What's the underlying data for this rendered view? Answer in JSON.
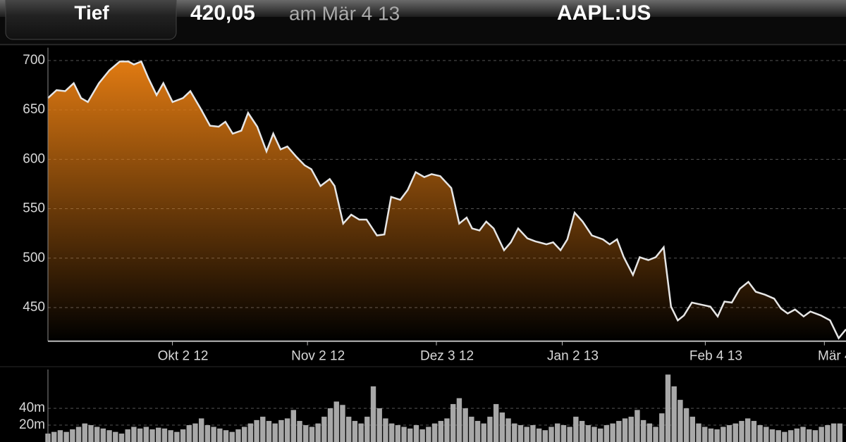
{
  "header": {
    "button": "Tief",
    "price": "420,05",
    "date": "am Mär 4 13",
    "symbol": "AAPL:US"
  },
  "chart_data": [
    {
      "type": "area",
      "x": [
        0,
        1.4,
        2.8,
        4.2,
        5.4,
        6.5,
        8.3,
        10,
        11.7,
        13.1,
        14,
        15.2,
        16.3,
        17.7,
        18.8,
        20.3,
        22,
        23.2,
        24.9,
        26.4,
        27.8,
        28.9,
        30.1,
        31.5,
        32.6,
        34.1,
        35.6,
        36.7,
        37.9,
        39,
        40.4,
        41.8,
        42.9,
        44.4,
        45.9,
        46.7,
        48.1,
        49.4,
        50.7,
        51.9,
        53.6,
        54.8,
        55.9,
        57.4,
        58.6,
        59.9,
        61.3,
        62.5,
        63.9,
        65.7,
        67,
        68.2,
        69.1,
        70.3,
        71.4,
        72.6,
        74.3,
        75.4,
        76.6,
        78.1,
        79.4,
        81.2,
        82.3,
        83.5,
        84.6,
        85.8,
        87.1,
        88.6,
        90.4,
        91.5,
        92.7,
        93.8,
        95.3,
        96.4,
        97.8,
        99,
        100.3,
        101.5,
        102.6,
        103.6,
        104.9,
        106.4,
        107.9,
        109.1,
        110.2,
        111.4,
        112.7,
        114.1,
        115.3,
        116.8,
        118.3,
        119.4,
        120.5,
        121.7,
        123.1,
        124.2,
        125.9,
        127.4,
        128.8,
        130
      ],
      "values": [
        662,
        670,
        669,
        677,
        662,
        658,
        677,
        690,
        699,
        699,
        696,
        699,
        683,
        665,
        677,
        658,
        662,
        669,
        651,
        634,
        633,
        638,
        626,
        629,
        647,
        633,
        608,
        626,
        610,
        613,
        603,
        594,
        590,
        573,
        580,
        573,
        535,
        544,
        539,
        539,
        523,
        524,
        562,
        559,
        569,
        587,
        582,
        585,
        583,
        571,
        535,
        541,
        530,
        528,
        537,
        530,
        508,
        516,
        530,
        520,
        517,
        514,
        516,
        508,
        519,
        546,
        537,
        523,
        519,
        514,
        519,
        501,
        483,
        501,
        498,
        501,
        511,
        451,
        437,
        442,
        455,
        453,
        451,
        441,
        456,
        455,
        469,
        476,
        466,
        463,
        459,
        449,
        444,
        448,
        441,
        446,
        442,
        437,
        419,
        428
      ],
      "line_color": "#e6e6e6",
      "fill_color": "#e07a12",
      "xlim": [
        0,
        130
      ],
      "xticks": [
        {
          "value": 22,
          "label": "Okt 2 12"
        },
        {
          "value": 44,
          "label": "Nov 2 12"
        },
        {
          "value": 65,
          "label": "Dez 3 12"
        },
        {
          "value": 85.5,
          "label": "Jan 2 13"
        },
        {
          "value": 108.8,
          "label": "Feb 4 13"
        },
        {
          "value": 128.2,
          "label": "Mär 4"
        }
      ],
      "ylim": [
        416,
        713
      ],
      "yticks": [
        450,
        500,
        550,
        600,
        650,
        700
      ],
      "grid": true
    },
    {
      "type": "bar",
      "x": [
        0,
        1,
        2,
        3,
        4,
        5,
        6,
        7,
        8,
        9,
        10,
        11,
        12,
        13,
        14,
        15,
        16,
        17,
        18,
        19,
        20,
        21,
        22,
        23,
        24,
        25,
        26,
        27,
        28,
        29,
        30,
        31,
        32,
        33,
        34,
        35,
        36,
        37,
        38,
        39,
        40,
        41,
        42,
        43,
        44,
        45,
        46,
        47,
        48,
        49,
        50,
        51,
        52,
        53,
        54,
        55,
        56,
        57,
        58,
        59,
        60,
        61,
        62,
        63,
        64,
        65,
        66,
        67,
        68,
        69,
        70,
        71,
        72,
        73,
        74,
        75,
        76,
        77,
        78,
        79,
        80,
        81,
        82,
        83,
        84,
        85,
        86,
        87,
        88,
        89,
        90,
        91,
        92,
        93,
        94,
        95,
        96,
        97,
        98,
        99,
        100,
        101,
        102,
        103,
        104,
        105,
        106,
        107,
        108,
        109,
        110,
        111,
        112,
        113,
        114,
        115,
        116,
        117,
        118,
        119,
        120,
        121,
        122,
        123,
        124,
        125,
        126,
        127,
        128,
        129
      ],
      "values": [
        10,
        12,
        14,
        12,
        15,
        18,
        22,
        20,
        18,
        16,
        14,
        12,
        10,
        15,
        18,
        16,
        18,
        15,
        17,
        16,
        14,
        12,
        15,
        20,
        22,
        28,
        20,
        18,
        16,
        14,
        12,
        15,
        18,
        22,
        26,
        30,
        25,
        22,
        26,
        28,
        38,
        25,
        20,
        18,
        22,
        30,
        40,
        48,
        44,
        30,
        25,
        22,
        30,
        66,
        40,
        28,
        22,
        20,
        18,
        16,
        20,
        15,
        18,
        22,
        25,
        28,
        45,
        52,
        40,
        30,
        25,
        22,
        30,
        45,
        35,
        28,
        22,
        20,
        18,
        20,
        16,
        14,
        18,
        22,
        20,
        18,
        30,
        25,
        20,
        18,
        16,
        20,
        22,
        25,
        28,
        30,
        38,
        26,
        22,
        18,
        34,
        80,
        66,
        50,
        40,
        30,
        22,
        18,
        16,
        15,
        18,
        20,
        22,
        25,
        28,
        25,
        20,
        18,
        15,
        14,
        12,
        14,
        16,
        18,
        15,
        14,
        18,
        20,
        22,
        22
      ],
      "color": "#a8a8a8",
      "xlim": [
        0,
        130
      ],
      "ylim": [
        0,
        86
      ],
      "yticks": [
        {
          "value": 20,
          "label": "20m"
        },
        {
          "value": 40,
          "label": "40m"
        }
      ],
      "grid": true
    }
  ]
}
